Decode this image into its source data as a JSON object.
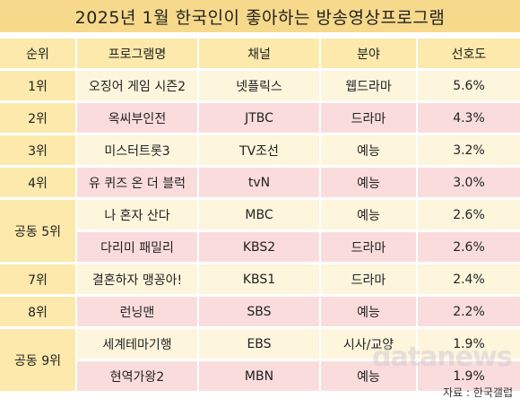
{
  "title": "2025년 1월 한국인이 좋아하는 방송영상프로그램",
  "columns": {
    "rank": "순위",
    "program": "프로그램명",
    "channel": "채널",
    "genre": "분야",
    "preference": "선호도"
  },
  "rows": [
    {
      "rank": "1위",
      "program": "오징어 게임 시즌2",
      "channel": "넷플릭스",
      "genre": "웹드라마",
      "preference": "5.6%"
    },
    {
      "rank": "2위",
      "program": "옥씨부인전",
      "channel": "JTBC",
      "genre": "드라마",
      "preference": "4.3%"
    },
    {
      "rank": "3위",
      "program": "미스터트롯3",
      "channel": "TV조선",
      "genre": "예능",
      "preference": "3.2%"
    },
    {
      "rank": "4위",
      "program": "유 퀴즈 온 더 블럭",
      "channel": "tvN",
      "genre": "예능",
      "preference": "3.0%"
    },
    {
      "rank": "공동 5위",
      "program": "나 혼자 산다",
      "channel": "MBC",
      "genre": "예능",
      "preference": "2.6%"
    },
    {
      "rank": "",
      "program": "다리미 패밀리",
      "channel": "KBS2",
      "genre": "드라마",
      "preference": "2.6%"
    },
    {
      "rank": "7위",
      "program": "결혼하자 맹꽁아!",
      "channel": "KBS1",
      "genre": "드라마",
      "preference": "2.4%"
    },
    {
      "rank": "8위",
      "program": "런닝맨",
      "channel": "SBS",
      "genre": "예능",
      "preference": "2.2%"
    },
    {
      "rank": "공동 9위",
      "program": "세계테마기행",
      "channel": "EBS",
      "genre": "시사/교양",
      "preference": "1.9%"
    },
    {
      "rank": "",
      "program": "현역가왕2",
      "channel": "MBN",
      "genre": "예능",
      "preference": "1.9%"
    }
  ],
  "watermark": "datanews",
  "source": "자료 : 한국갤럽",
  "colors": {
    "title_bg": "#f7d98b",
    "header_bg": "#fce9ab",
    "row_cream": "#fdf5dc",
    "row_pink": "#fbdcdc"
  }
}
